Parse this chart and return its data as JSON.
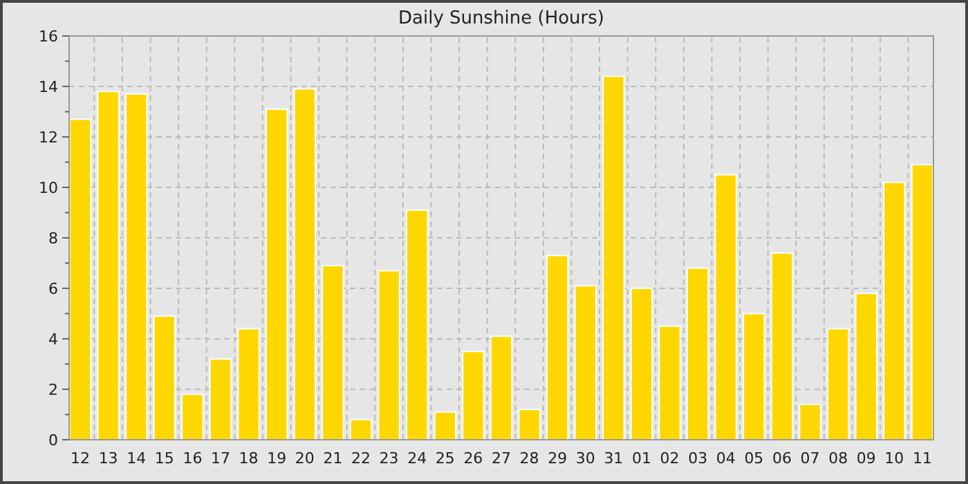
{
  "chart_data": {
    "type": "bar",
    "title": "Daily Sunshine (Hours)",
    "categories": [
      "12",
      "13",
      "14",
      "15",
      "16",
      "17",
      "18",
      "19",
      "20",
      "21",
      "22",
      "23",
      "24",
      "25",
      "26",
      "27",
      "28",
      "29",
      "30",
      "31",
      "01",
      "02",
      "03",
      "04",
      "05",
      "06",
      "07",
      "08",
      "09",
      "10",
      "11"
    ],
    "values": [
      12.7,
      13.8,
      13.7,
      4.9,
      1.8,
      3.2,
      4.4,
      13.1,
      13.9,
      6.9,
      0.8,
      6.7,
      9.1,
      1.1,
      3.5,
      4.1,
      1.2,
      7.3,
      6.1,
      14.4,
      6.0,
      4.5,
      6.8,
      10.5,
      5.0,
      7.4,
      1.4,
      4.4,
      5.8,
      10.2,
      10.9
    ],
    "color": "#ffd700",
    "ylim": [
      0,
      16
    ],
    "yticks": [
      0,
      {
        "value": 1,
        "label": null
      },
      2,
      {
        "value": 3,
        "label": null
      },
      4,
      {
        "value": 5,
        "label": null
      },
      6,
      {
        "value": 7,
        "label": null
      },
      8,
      {
        "value": 9,
        "label": null
      },
      10,
      {
        "value": 11,
        "label": null
      },
      12,
      {
        "value": 13,
        "label": null
      },
      14,
      {
        "value": 15,
        "label": null
      },
      16
    ],
    "grid": true
  }
}
